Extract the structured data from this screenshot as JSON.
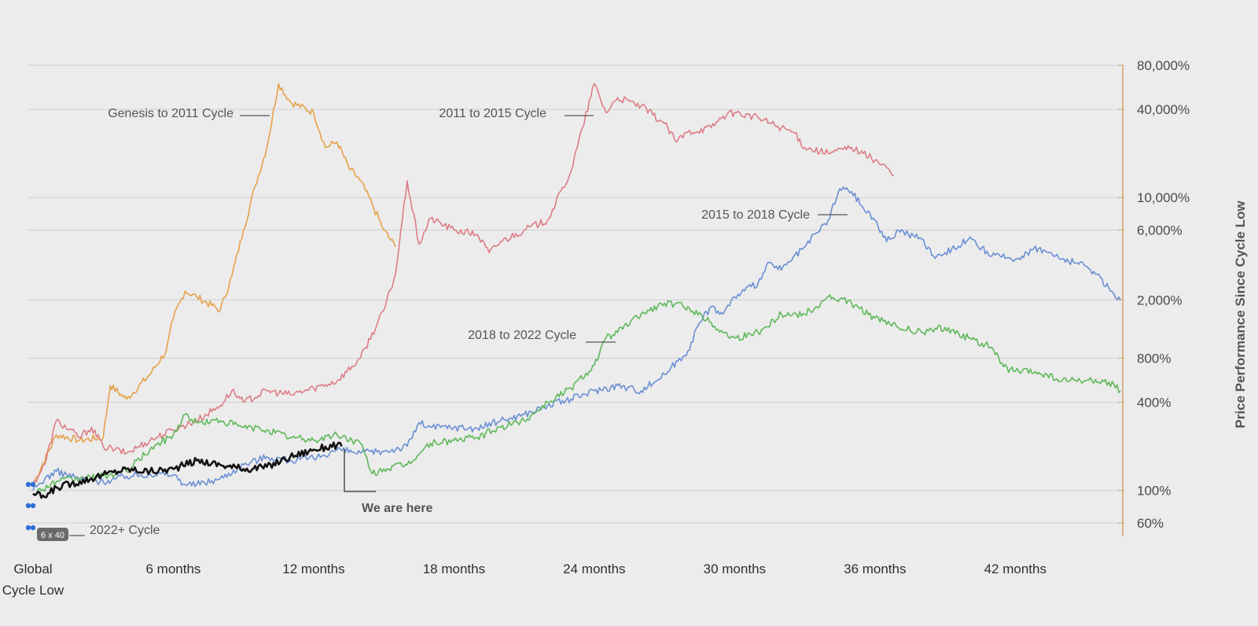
{
  "chart_data": {
    "type": "line",
    "title": "",
    "xlabel": "",
    "ylabel": "Price Performance Since Cycle Low",
    "y_scale": "log",
    "ylim_percent": [
      55,
      80000
    ],
    "xlim_months": [
      0,
      47
    ],
    "grid": true,
    "y_axis_side": "right",
    "x_ticks": [
      {
        "month": 0,
        "line1": "Global",
        "line2": "Cycle Low"
      },
      {
        "month": 6,
        "line1": "6 months",
        "line2": ""
      },
      {
        "month": 12,
        "line1": "12 months",
        "line2": ""
      },
      {
        "month": 18,
        "line1": "18 months",
        "line2": ""
      },
      {
        "month": 24,
        "line1": "24 months",
        "line2": ""
      },
      {
        "month": 30,
        "line1": "30 months",
        "line2": ""
      },
      {
        "month": 36,
        "line1": "36 months",
        "line2": ""
      },
      {
        "month": 42,
        "line1": "42 months",
        "line2": ""
      }
    ],
    "y_ticks": [
      {
        "value": 80000,
        "label": "80,000%"
      },
      {
        "value": 40000,
        "label": "40,000%"
      },
      {
        "value": 10000,
        "label": "10,000%"
      },
      {
        "value": 6000,
        "label": "6,000%"
      },
      {
        "value": 2000,
        "label": "2,000%"
      },
      {
        "value": 800,
        "label": "800%"
      },
      {
        "value": 400,
        "label": "400%"
      },
      {
        "value": 100,
        "label": "100%"
      },
      {
        "value": 60,
        "label": "60%"
      }
    ],
    "series": [
      {
        "name": "Genesis to 2011 Cycle",
        "color": "#e7a14a",
        "points": [
          [
            0,
            110
          ],
          [
            1,
            240
          ],
          [
            2,
            220
          ],
          [
            3,
            230
          ],
          [
            3.3,
            520
          ],
          [
            4,
            420
          ],
          [
            5,
            620
          ],
          [
            5.7,
            900
          ],
          [
            6,
            1500
          ],
          [
            6.5,
            2300
          ],
          [
            7,
            2100
          ],
          [
            8,
            1700
          ],
          [
            8.5,
            2900
          ],
          [
            9,
            6000
          ],
          [
            9.5,
            12000
          ],
          [
            10,
            22000
          ],
          [
            10.5,
            60000
          ],
          [
            11,
            45000
          ],
          [
            12,
            38000
          ],
          [
            12.5,
            22000
          ],
          [
            13,
            24000
          ],
          [
            13.5,
            16000
          ],
          [
            14,
            13000
          ],
          [
            14.5,
            9000
          ],
          [
            15,
            6000
          ],
          [
            15.5,
            4600
          ]
        ]
      },
      {
        "name": "2011 to 2015 Cycle",
        "color": "#dd7d86",
        "points": [
          [
            0,
            110
          ],
          [
            0.5,
            150
          ],
          [
            1,
            300
          ],
          [
            2,
            230
          ],
          [
            2.5,
            270
          ],
          [
            3,
            200
          ],
          [
            3.5,
            190
          ],
          [
            4,
            180
          ],
          [
            5,
            220
          ],
          [
            6,
            260
          ],
          [
            7,
            300
          ],
          [
            8,
            380
          ],
          [
            8.5,
            480
          ],
          [
            9,
            400
          ],
          [
            10,
            480
          ],
          [
            11,
            450
          ],
          [
            12,
            500
          ],
          [
            13,
            560
          ],
          [
            14,
            800
          ],
          [
            15,
            1700
          ],
          [
            15.5,
            3000
          ],
          [
            16,
            13000
          ],
          [
            16.5,
            4800
          ],
          [
            17,
            7200
          ],
          [
            18,
            6000
          ],
          [
            19,
            5600
          ],
          [
            19.5,
            4200
          ],
          [
            20,
            5000
          ],
          [
            21,
            6000
          ],
          [
            22,
            7000
          ],
          [
            23,
            15000
          ],
          [
            23.5,
            30000
          ],
          [
            24,
            60000
          ],
          [
            24.5,
            38000
          ],
          [
            25,
            48000
          ],
          [
            26,
            42000
          ],
          [
            27,
            32000
          ],
          [
            27.5,
            24000
          ],
          [
            28,
            28000
          ],
          [
            29,
            30000
          ],
          [
            29.5,
            36000
          ],
          [
            30,
            38000
          ],
          [
            31,
            35000
          ],
          [
            32,
            30000
          ],
          [
            32.5,
            28000
          ],
          [
            33,
            22000
          ],
          [
            34,
            20000
          ],
          [
            35,
            22000
          ],
          [
            35.5,
            20000
          ],
          [
            36,
            18000
          ],
          [
            36.5,
            16000
          ],
          [
            36.8,
            14000
          ]
        ]
      },
      {
        "name": "2015 to 2018 Cycle",
        "color": "#6b8fd4",
        "points": [
          [
            0,
            100
          ],
          [
            0.5,
            120
          ],
          [
            1,
            135
          ],
          [
            2,
            120
          ],
          [
            3,
            115
          ],
          [
            4,
            125
          ],
          [
            5,
            130
          ],
          [
            6,
            128
          ],
          [
            6.5,
            110
          ],
          [
            7,
            110
          ],
          [
            8,
            120
          ],
          [
            9,
            150
          ],
          [
            10,
            170
          ],
          [
            11,
            160
          ],
          [
            12,
            165
          ],
          [
            13,
            190
          ],
          [
            14,
            180
          ],
          [
            15,
            185
          ],
          [
            16,
            200
          ],
          [
            16.5,
            290
          ],
          [
            17,
            270
          ],
          [
            18,
            270
          ],
          [
            19,
            265
          ],
          [
            20,
            300
          ],
          [
            21,
            330
          ],
          [
            22,
            380
          ],
          [
            23,
            420
          ],
          [
            24,
            480
          ],
          [
            25,
            520
          ],
          [
            26,
            480
          ],
          [
            27,
            620
          ],
          [
            28,
            900
          ],
          [
            28.5,
            1400
          ],
          [
            29,
            1800
          ],
          [
            29.5,
            1600
          ],
          [
            30,
            2100
          ],
          [
            31,
            2600
          ],
          [
            31.5,
            3600
          ],
          [
            32,
            3200
          ],
          [
            33,
            4600
          ],
          [
            34,
            7000
          ],
          [
            34.5,
            11500
          ],
          [
            35,
            11000
          ],
          [
            35.5,
            8500
          ],
          [
            36,
            7000
          ],
          [
            36.5,
            5000
          ],
          [
            37,
            6000
          ],
          [
            38,
            5200
          ],
          [
            38.5,
            4000
          ],
          [
            39,
            4200
          ],
          [
            40,
            5200
          ],
          [
            41,
            4000
          ],
          [
            42,
            3800
          ],
          [
            42.5,
            4200
          ],
          [
            43,
            4500
          ],
          [
            44,
            3800
          ],
          [
            45,
            3400
          ],
          [
            45.5,
            3000
          ],
          [
            46,
            2400
          ],
          [
            46.5,
            2000
          ]
        ]
      },
      {
        "name": "2018 to 2022 Cycle",
        "color": "#5fb85a",
        "points": [
          [
            0,
            95
          ],
          [
            1,
            115
          ],
          [
            2,
            120
          ],
          [
            3,
            125
          ],
          [
            4,
            135
          ],
          [
            5,
            190
          ],
          [
            6,
            240
          ],
          [
            6.5,
            330
          ],
          [
            7,
            290
          ],
          [
            8,
            300
          ],
          [
            9,
            270
          ],
          [
            10,
            260
          ],
          [
            11,
            230
          ],
          [
            12,
            220
          ],
          [
            13,
            240
          ],
          [
            14,
            210
          ],
          [
            14.5,
            130
          ],
          [
            15,
            140
          ],
          [
            16,
            150
          ],
          [
            17,
            210
          ],
          [
            18,
            220
          ],
          [
            19,
            230
          ],
          [
            20,
            270
          ],
          [
            21,
            300
          ],
          [
            22,
            400
          ],
          [
            23,
            500
          ],
          [
            24,
            720
          ],
          [
            24.5,
            1100
          ],
          [
            25,
            1200
          ],
          [
            26,
            1600
          ],
          [
            27,
            1900
          ],
          [
            28,
            1800
          ],
          [
            29,
            1400
          ],
          [
            29.5,
            1200
          ],
          [
            30,
            1100
          ],
          [
            31,
            1200
          ],
          [
            32,
            1600
          ],
          [
            33,
            1600
          ],
          [
            33.5,
            1800
          ],
          [
            34,
            2100
          ],
          [
            35,
            1900
          ],
          [
            36,
            1500
          ],
          [
            37,
            1300
          ],
          [
            38,
            1200
          ],
          [
            39,
            1300
          ],
          [
            40,
            1100
          ],
          [
            41,
            950
          ],
          [
            41.5,
            700
          ],
          [
            42,
            650
          ],
          [
            43,
            640
          ],
          [
            44,
            560
          ],
          [
            45,
            560
          ],
          [
            46,
            550
          ],
          [
            46.5,
            480
          ]
        ]
      },
      {
        "name": "2022+ Cycle",
        "color": "#111111",
        "points": [
          [
            0,
            95
          ],
          [
            0.5,
            90
          ],
          [
            1,
            105
          ],
          [
            2,
            115
          ],
          [
            3,
            128
          ],
          [
            4,
            140
          ],
          [
            5,
            135
          ],
          [
            6,
            140
          ],
          [
            7,
            160
          ],
          [
            8,
            150
          ],
          [
            9,
            140
          ],
          [
            10,
            145
          ],
          [
            11,
            170
          ],
          [
            12,
            190
          ],
          [
            13,
            205
          ],
          [
            13.2,
            200
          ]
        ]
      }
    ],
    "annotations": [
      {
        "text": "Genesis to 2011 Cycle",
        "series": "Genesis to 2011 Cycle"
      },
      {
        "text": "2011 to 2015 Cycle",
        "series": "2011 to 2015 Cycle"
      },
      {
        "text": "2015 to 2018 Cycle",
        "series": "2015 to 2018 Cycle"
      },
      {
        "text": "2018 to 2022 Cycle",
        "series": "2018 to 2022 Cycle"
      },
      {
        "text": "2022+ Cycle",
        "series": "2022+ Cycle"
      },
      {
        "text": "We are here",
        "series": "2022+ Cycle"
      }
    ],
    "overlay_badge": "6 x 40"
  }
}
